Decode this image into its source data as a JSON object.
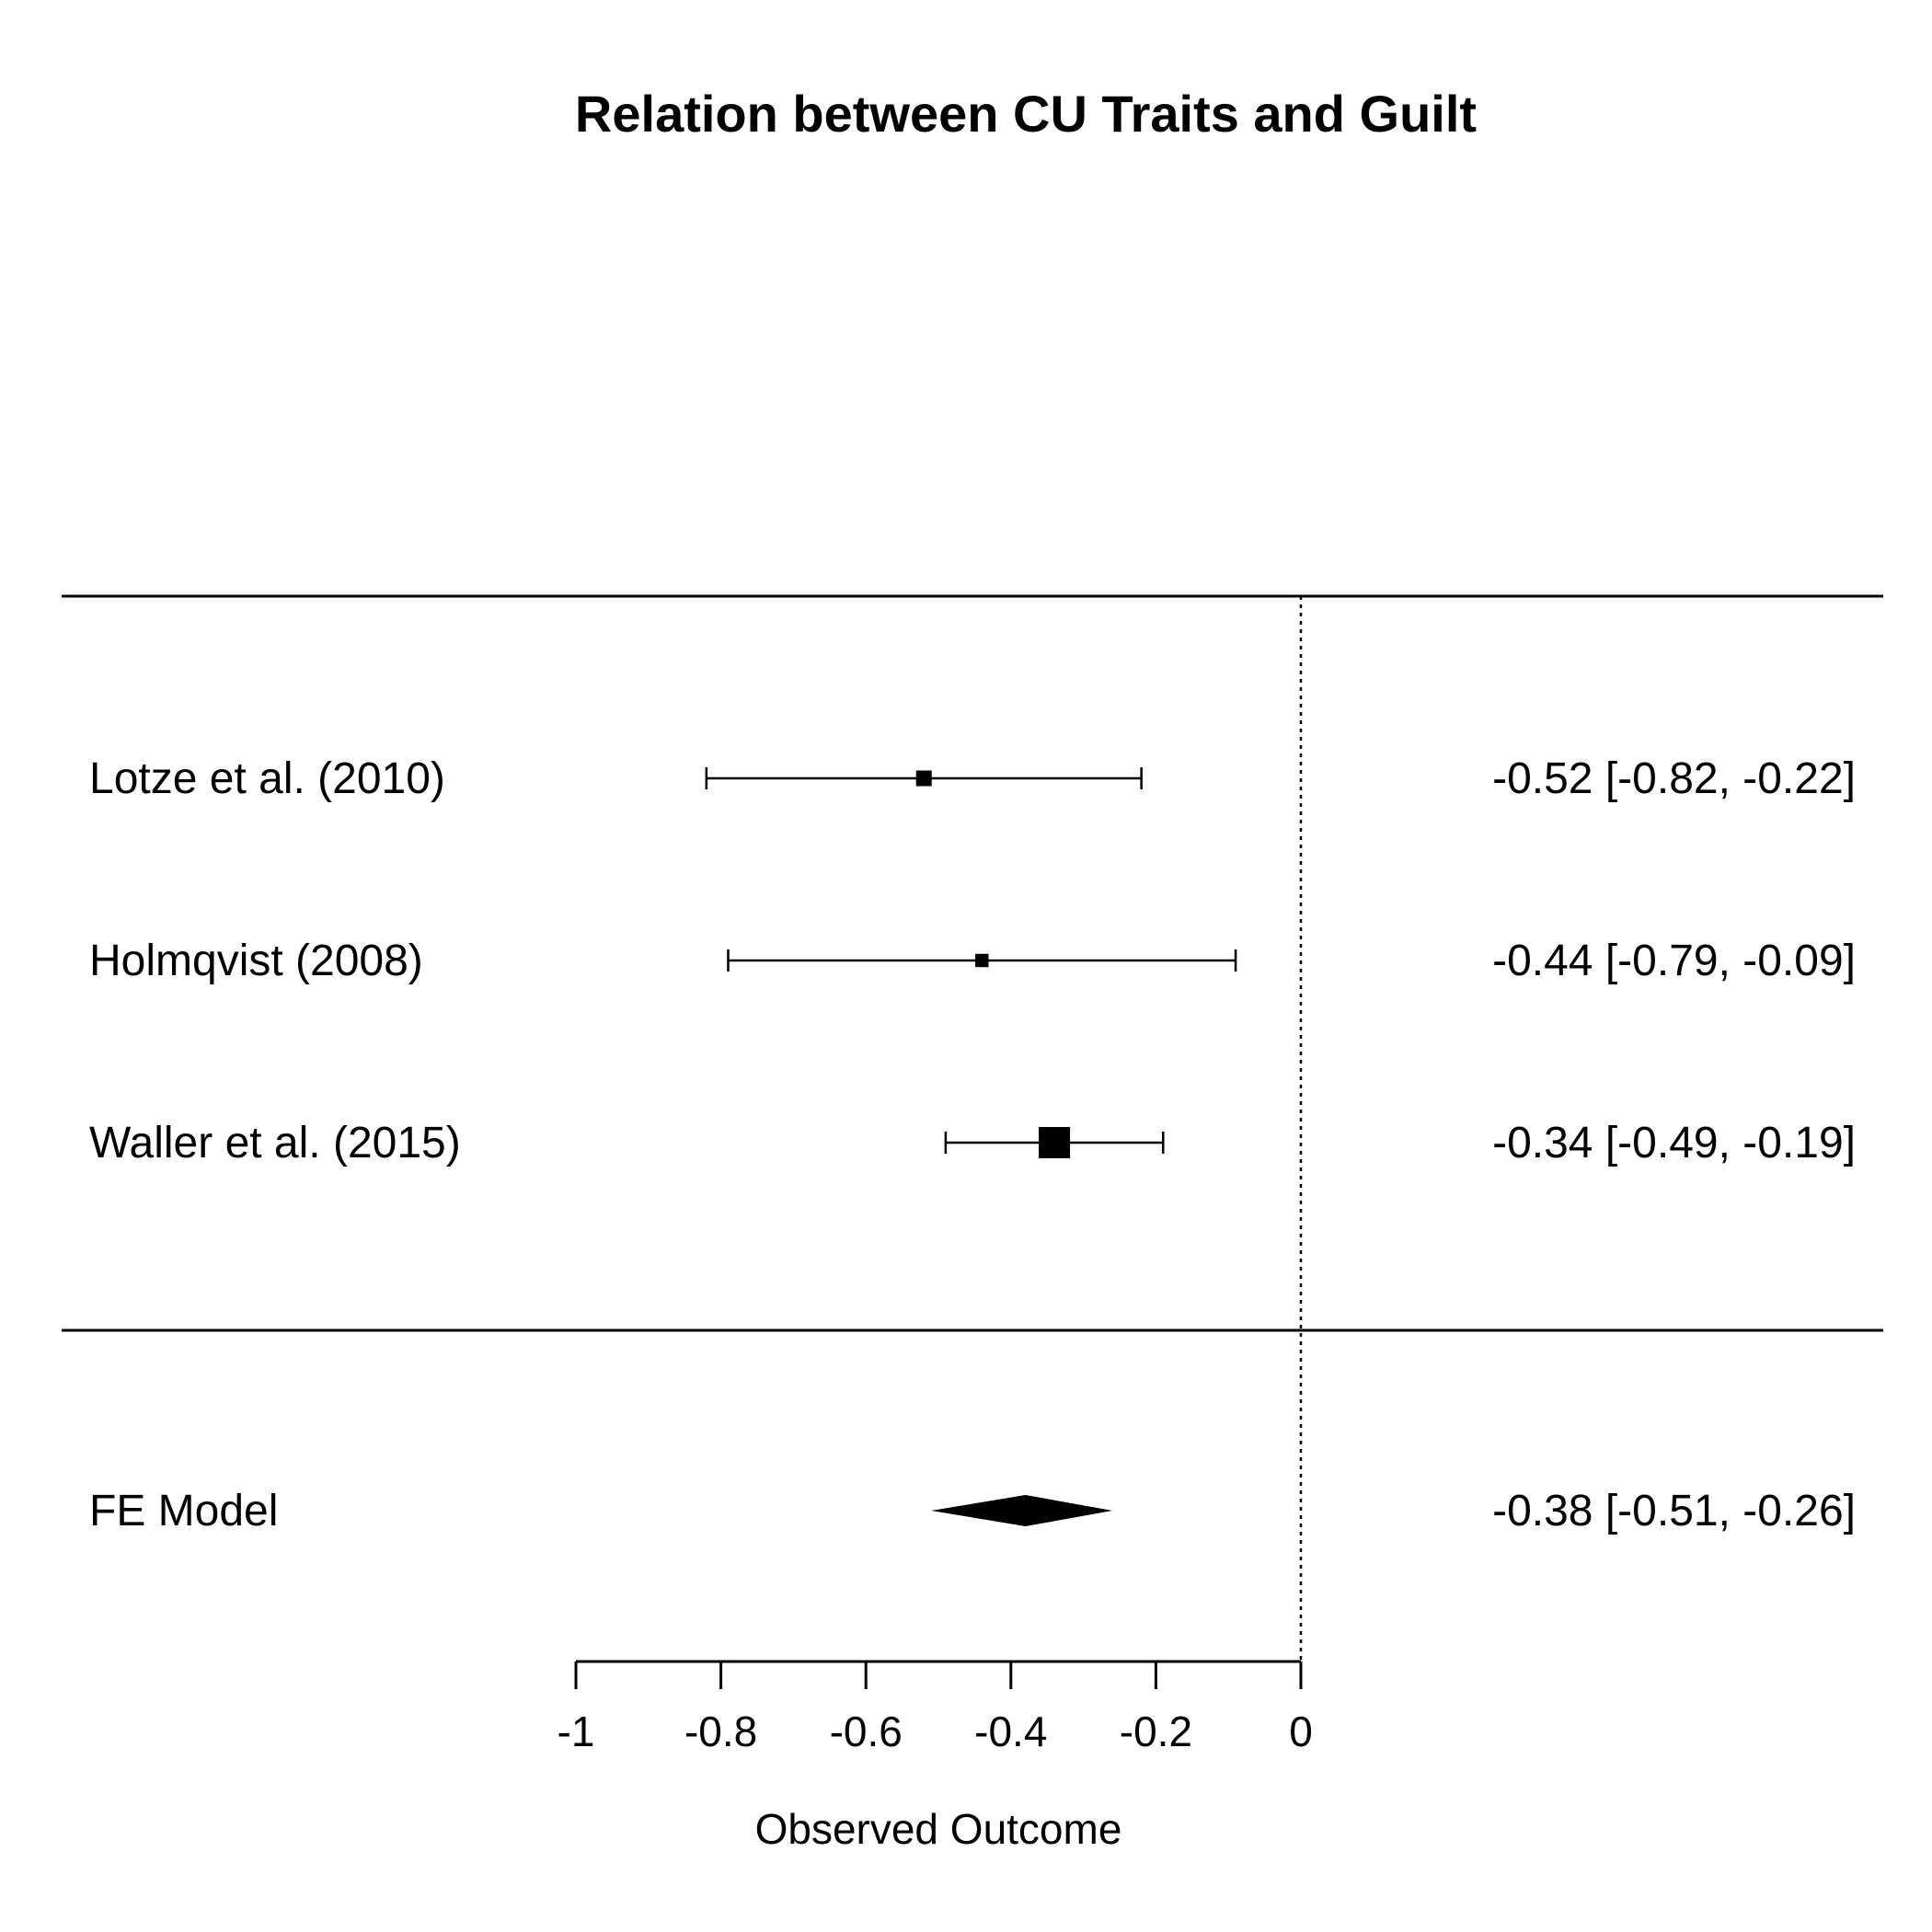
{
  "chart_data": {
    "type": "forest",
    "title": "Relation between CU Traits and Guilt",
    "xlabel": "Observed Outcome",
    "xlim": [
      -1,
      0
    ],
    "x_ticks": [
      -1,
      -0.8,
      -0.6,
      -0.4,
      -0.2,
      0
    ],
    "x_tick_labels": [
      "-1",
      "-0.8",
      "-0.6",
      "-0.4",
      "-0.2",
      "0"
    ],
    "reference_line": 0,
    "studies": [
      {
        "label": "Lotze et al. (2010)",
        "estimate": -0.52,
        "ci_lower": -0.82,
        "ci_upper": -0.22,
        "annotation": "-0.52 [-0.82, -0.22]",
        "weight": 0.25
      },
      {
        "label": "Holmqvist (2008)",
        "estimate": -0.44,
        "ci_lower": -0.79,
        "ci_upper": -0.09,
        "annotation": "-0.44 [-0.79, -0.09]",
        "weight": 0.18
      },
      {
        "label": "Waller et al. (2015)",
        "estimate": -0.34,
        "ci_lower": -0.49,
        "ci_upper": -0.19,
        "annotation": "-0.34 [-0.49, -0.19]",
        "weight": 1.0
      }
    ],
    "summary": {
      "label": "FE Model",
      "estimate": -0.38,
      "ci_lower": -0.51,
      "ci_upper": -0.26,
      "annotation": "-0.38 [-0.51, -0.26]"
    }
  }
}
